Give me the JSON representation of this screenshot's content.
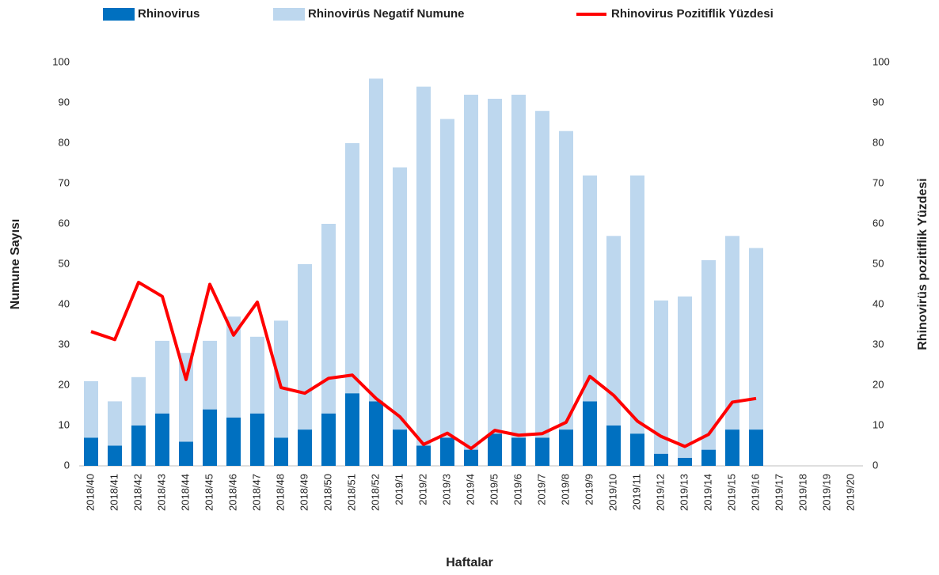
{
  "chart_data": {
    "type": "bar",
    "stacked": true,
    "x_label": "Haftalar",
    "y_label": "Numune Sayısı",
    "y2_label": "Rhinovirüs pozitiflik Yüzdesi",
    "categories": [
      "2018/40",
      "2018/41",
      "2018/42",
      "2018/43",
      "2018/44",
      "2018/45",
      "2018/46",
      "2018/47",
      "2018/48",
      "2018/49",
      "2018/50",
      "2018/51",
      "2018/52",
      "2019/1",
      "2019/2",
      "2019/3",
      "2019/4",
      "2019/5",
      "2019/6",
      "2019/7",
      "2019/8",
      "2019/9",
      "2019/10",
      "2019/11",
      "2019/12",
      "2019/13",
      "2019/14",
      "2019/15",
      "2019/16",
      "2019/17",
      "2019/18",
      "2019/19",
      "2019/20"
    ],
    "series": [
      {
        "name": "Rhinovirus",
        "type": "bar",
        "color": "#0070c0",
        "values": [
          7,
          5,
          10,
          13,
          6,
          14,
          12,
          13,
          7,
          9,
          13,
          18,
          16,
          9,
          5,
          7,
          4,
          8,
          7,
          7,
          9,
          16,
          10,
          8,
          3,
          2,
          4,
          9,
          9,
          null,
          null,
          null,
          null
        ]
      },
      {
        "name": "Rhinovirüs Negatif Numune",
        "type": "bar",
        "color": "#bdd7ee",
        "values": [
          14,
          11,
          12,
          18,
          22,
          17,
          25,
          19,
          29,
          41,
          47,
          62,
          80,
          65,
          89,
          79,
          88,
          83,
          85,
          81,
          74,
          56,
          47,
          64,
          38,
          40,
          47,
          48,
          45,
          null,
          null,
          null,
          null
        ]
      },
      {
        "name": "Rhinovirus Pozitiflik Yüzdesi",
        "type": "line",
        "axis": "y2",
        "color": "#ff0000",
        "values": [
          33.3,
          31.3,
          45.5,
          42,
          21.4,
          45,
          32.4,
          40.6,
          19.4,
          18,
          21.7,
          22.5,
          16.7,
          12.2,
          5.3,
          8.1,
          4.3,
          8.8,
          7.6,
          8,
          10.8,
          22.2,
          17.5,
          11.1,
          7.3,
          4.8,
          7.8,
          15.8,
          16.7,
          null,
          null,
          null,
          null
        ]
      }
    ],
    "ylim": [
      0,
      100
    ],
    "yticks": [
      0,
      10,
      20,
      30,
      40,
      50,
      60,
      70,
      80,
      90,
      100
    ],
    "y2lim": [
      0,
      100
    ],
    "y2ticks": [
      0,
      10,
      20,
      30,
      40,
      50,
      60,
      70,
      80,
      90,
      100
    ],
    "grid": false
  }
}
